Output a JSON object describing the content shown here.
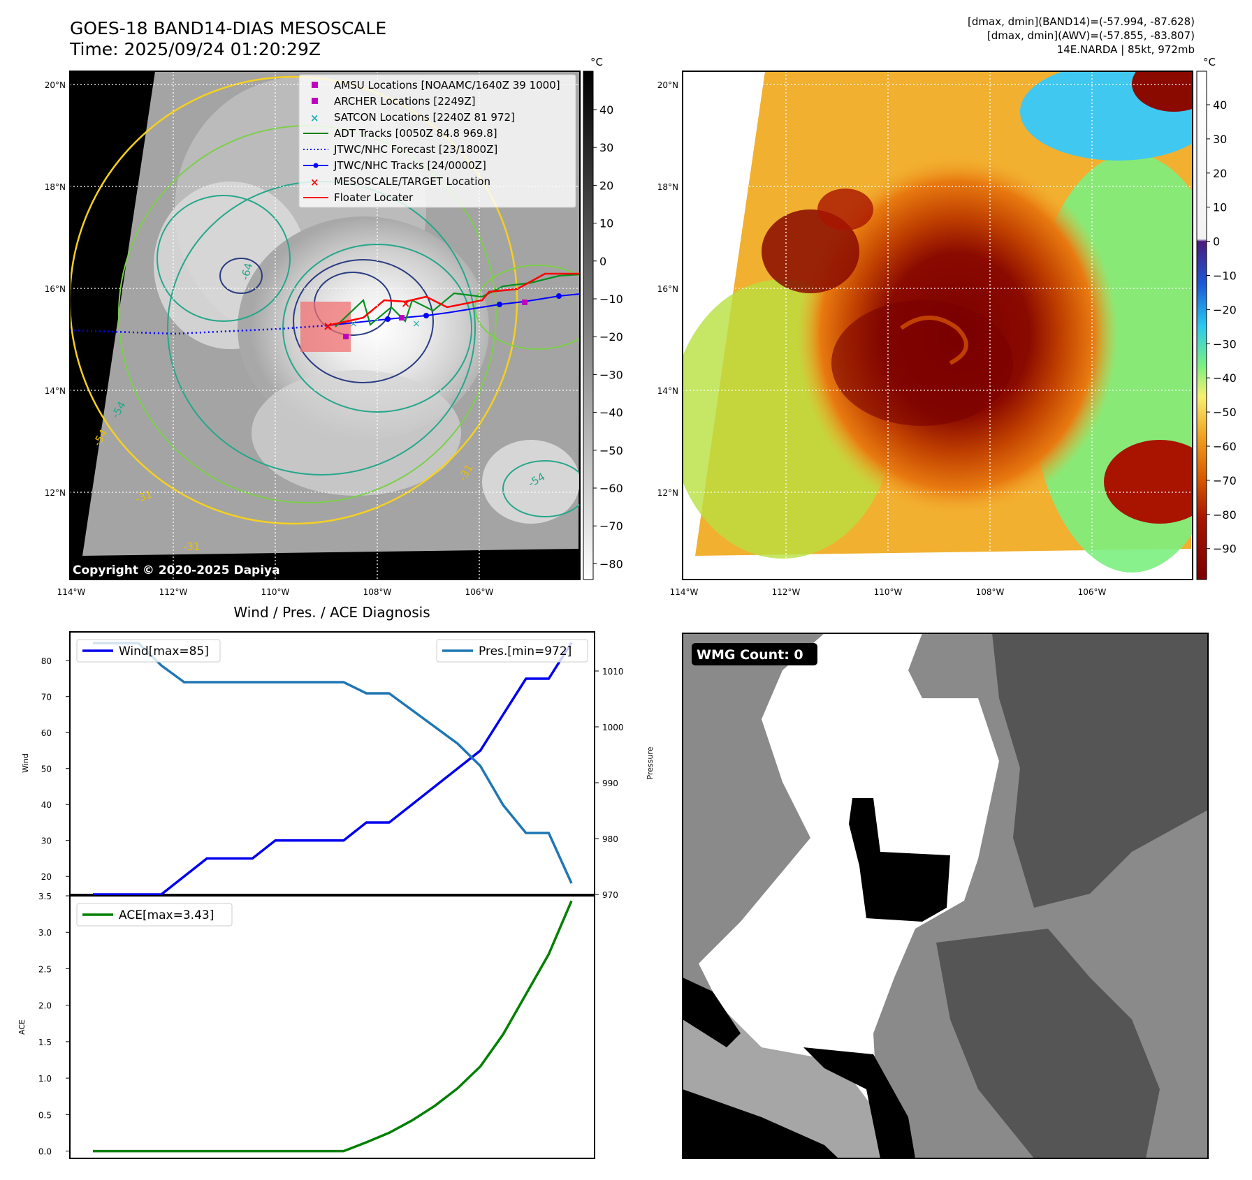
{
  "header": {
    "title_line1": "GOES-18 BAND14-DIAS MESOSCALE",
    "title_line2": "Time: 2025/09/24 01:20:29Z",
    "info_line1": "[dmax, dmin](BAND14)=(-57.994, -87.628)",
    "info_line2": "[dmax, dmin](AWV)=(-57.855, -83.807)",
    "info_line3": "14E.NARDA | 85kt, 972mb"
  },
  "map_axes": {
    "lon_labels": [
      "114°W",
      "112°W",
      "110°W",
      "108°W",
      "106°W"
    ],
    "lat_labels": [
      "20°N",
      "18°N",
      "16°N",
      "14°N",
      "12°N"
    ]
  },
  "ir_panel": {
    "copyright": "Copyright © 2020-2025 Dapiya",
    "colorbar_unit": "°C",
    "colorbar_ticks": [
      "40",
      "30",
      "20",
      "10",
      "0",
      "−10",
      "−20",
      "−30",
      "−40",
      "−50",
      "−60",
      "−70",
      "−80"
    ],
    "contour_labels": [
      "-64",
      "-54",
      "-31",
      "-54",
      "-31",
      "-54",
      "-31"
    ],
    "legend": [
      {
        "label": "AMSU Locations [NOAAMC/1640Z 39 1000]",
        "color": "#c000c0",
        "marker": "square"
      },
      {
        "label": "ARCHER Locations [2249Z]",
        "color": "#c000c0",
        "marker": "square"
      },
      {
        "label": "SATCON Locations [2240Z 81 972]",
        "color": "#20b0b0",
        "marker": "x"
      },
      {
        "label": "ADT Tracks [0050Z 84.8 969.8]",
        "color": "#008000",
        "marker": "line"
      },
      {
        "label": "JTWC/NHC Forecast [23/1800Z]",
        "color": "#0000ff",
        "marker": "dotted"
      },
      {
        "label": "JTWC/NHC Tracks [24/0000Z]",
        "color": "#0000ff",
        "marker": "line-dot"
      },
      {
        "label": "MESOSCALE/TARGET Location",
        "color": "#ff0000",
        "marker": "x"
      },
      {
        "label": "Floater Locater",
        "color": "#ff0000",
        "marker": "line"
      }
    ]
  },
  "color_panel": {
    "colorbar_unit": "°C",
    "colorbar_ticks": [
      "40",
      "30",
      "20",
      "10",
      "0",
      "−10",
      "−20",
      "−30",
      "−40",
      "−50",
      "−60",
      "−70",
      "−80",
      "−90"
    ]
  },
  "wmg_panel": {
    "badge": "WMG Count: 0"
  },
  "chart_data": [
    {
      "type": "line",
      "title": "Wind / Pres. / ACE Diagnosis",
      "ylabel": "Wind",
      "ylabel_right": "Pressure",
      "ylim": [
        15,
        88
      ],
      "ylim_right": [
        970,
        1017
      ],
      "yticks": [
        20,
        30,
        40,
        50,
        60,
        70,
        80
      ],
      "yticks_right": [
        970,
        980,
        990,
        1000,
        1010
      ],
      "series": [
        {
          "name": "Wind[max=85]",
          "color": "#0000ee",
          "values": [
            15,
            15,
            15,
            15,
            20,
            25,
            25,
            25,
            30,
            30,
            30,
            30,
            35,
            35,
            40,
            45,
            50,
            55,
            65,
            75,
            75,
            85
          ]
        },
        {
          "name": "Pres.[min=972]",
          "color": "#1f77b4",
          "values": [
            1015,
            1015,
            1015,
            1011,
            1008,
            1008,
            1008,
            1008,
            1008,
            1008,
            1008,
            1008,
            1006,
            1006,
            1003,
            1000,
            997,
            993,
            986,
            981,
            981,
            972
          ]
        }
      ]
    },
    {
      "type": "line",
      "ylabel": "ACE",
      "ylim": [
        -0.1,
        3.5
      ],
      "yticks": [
        0.0,
        0.5,
        1.0,
        1.5,
        2.0,
        2.5,
        3.0,
        3.5
      ],
      "yticklabels": [
        "0.0",
        "0.5",
        "1.0",
        "1.5",
        "2.0",
        "2.5",
        "3.0",
        "3.5"
      ],
      "series": [
        {
          "name": "ACE[max=3.43]",
          "color": "#008000",
          "values": [
            0,
            0,
            0,
            0,
            0,
            0,
            0,
            0,
            0,
            0,
            0,
            0,
            0.12,
            0.25,
            0.42,
            0.62,
            0.86,
            1.16,
            1.6,
            2.15,
            2.7,
            3.43
          ]
        }
      ]
    }
  ]
}
